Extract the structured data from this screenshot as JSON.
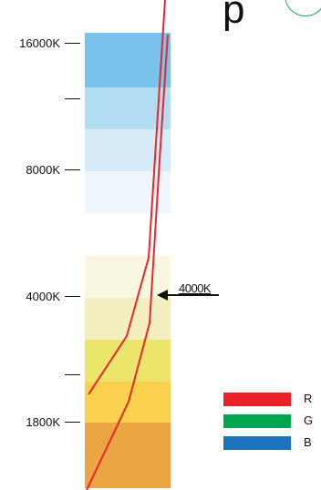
{
  "axis": {
    "ticks": [
      {
        "label": "16000K"
      },
      {
        "label": ""
      },
      {
        "label": "8000K"
      },
      {
        "label": "4000K"
      },
      {
        "label": ""
      },
      {
        "label": "1800K"
      }
    ]
  },
  "bands": [
    {
      "color": "#78c3eb"
    },
    {
      "color": "#b3ddf3"
    },
    {
      "color": "#d6ecf8"
    },
    {
      "color": "#eef6fc"
    },
    {
      "color": "#f9f7e0"
    },
    {
      "color": "#f3efc0"
    },
    {
      "color": "#ebe56b"
    },
    {
      "color": "#fbd14f"
    },
    {
      "color": "#eba542"
    }
  ],
  "callout": {
    "label": "4000K"
  },
  "legend": [
    {
      "label": "R",
      "color": "#ec2027"
    },
    {
      "label": "G",
      "color": "#00a650"
    },
    {
      "label": "B",
      "color": "#1c75bc"
    }
  ],
  "top_fragment": {
    "glyph": "p"
  },
  "line_color": "#e8262b"
}
